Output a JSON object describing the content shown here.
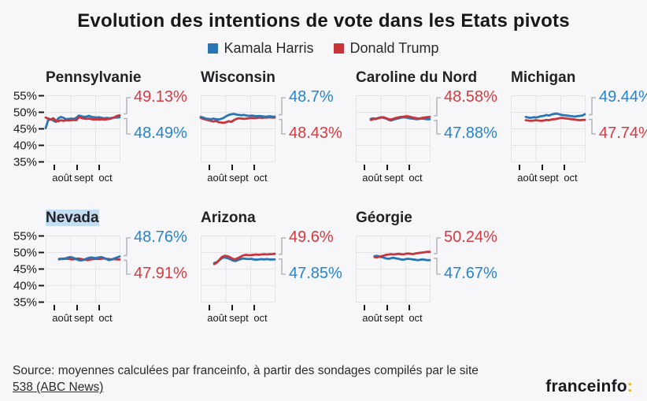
{
  "header": {
    "title": "Evolution des intentions de vote dans les Etats pivots"
  },
  "legend": [
    {
      "label": "Kamala Harris",
      "series": "harris"
    },
    {
      "label": "Donald Trump",
      "series": "trump"
    }
  ],
  "colors": {
    "harris_line": "#2a76b5",
    "trump_line": "#c9343a",
    "harris_label": "#2584cd",
    "trump_label": "#d8393e",
    "grid": "#e4e4e9",
    "axis": "#17181a",
    "bracket": "#b7b7bf",
    "highlight": "#c3ddf3",
    "logo_colon": "#f2b705"
  },
  "source": {
    "text": "Source: moyennes calculées par franceinfo, à partir des sondages compilés par le site",
    "link": "538 (ABC News)"
  },
  "logo": {
    "text": "franceinfo",
    "colon": ":"
  },
  "chart_data": [
    {
      "id": "pennsylvanie",
      "title": "Pennsylvanie",
      "type": "line",
      "row": 1,
      "show_y_axis": true,
      "highlighted": false,
      "y_ticks": [
        "55%",
        "50%",
        "45%",
        "40%",
        "35%"
      ],
      "y_range": [
        35,
        55
      ],
      "x_ticks": [
        "août",
        "sept",
        "oct"
      ],
      "start_frac": 0.0,
      "label_top": {
        "text": "49.13%",
        "series": "trump"
      },
      "label_bottom": {
        "text": "48.49%",
        "series": "harris"
      },
      "series": [
        {
          "name": "harris",
          "final": 48.49,
          "values": [
            45.2,
            47.6,
            47.9,
            47.5,
            47.1,
            48.2,
            48.6,
            48.3,
            47.9,
            48.0,
            48.1,
            48.0,
            48.3,
            49.0,
            48.8,
            48.6,
            48.7,
            48.9,
            48.6,
            48.5,
            48.4,
            48.5,
            48.3,
            48.2,
            48.3,
            48.2,
            48.3,
            48.4,
            48.4,
            48.5
          ]
        },
        {
          "name": "trump",
          "final": 49.13,
          "values": [
            48.4,
            48.1,
            47.8,
            48.2,
            47.4,
            47.3,
            47.6,
            47.4,
            47.6,
            47.5,
            47.6,
            47.7,
            47.6,
            48.5,
            48.3,
            48.1,
            48.0,
            48.1,
            47.9,
            47.8,
            47.9,
            47.8,
            47.9,
            47.8,
            47.9,
            48.0,
            48.2,
            48.5,
            48.9,
            49.1
          ]
        }
      ]
    },
    {
      "id": "wisconsin",
      "title": "Wisconsin",
      "type": "line",
      "row": 1,
      "show_y_axis": false,
      "highlighted": false,
      "y_ticks": [
        "55%",
        "50%",
        "45%",
        "40%",
        "35%"
      ],
      "y_range": [
        35,
        55
      ],
      "x_ticks": [
        "août",
        "sept",
        "oct"
      ],
      "start_frac": 0.0,
      "label_top": {
        "text": "48.7%",
        "series": "harris"
      },
      "label_bottom": {
        "text": "48.43%",
        "series": "trump"
      },
      "series": [
        {
          "name": "trump",
          "final": 48.43,
          "values": [
            48.3,
            48.0,
            47.8,
            47.6,
            47.4,
            47.2,
            47.4,
            47.0,
            46.9,
            46.8,
            47.0,
            47.3,
            47.1,
            47.6,
            48.0,
            48.2,
            48.1,
            48.0,
            48.1,
            48.2,
            48.3,
            48.2,
            48.3,
            48.4,
            48.3,
            48.4,
            48.4,
            48.5,
            48.4,
            48.4
          ]
        },
        {
          "name": "harris",
          "final": 48.7,
          "values": [
            48.6,
            48.4,
            48.1,
            48.0,
            47.9,
            48.1,
            47.9,
            47.8,
            48.0,
            48.3,
            48.8,
            49.2,
            49.4,
            49.5,
            49.3,
            49.2,
            49.1,
            49.2,
            49.0,
            48.9,
            49.0,
            48.9,
            48.8,
            48.9,
            48.8,
            48.7,
            48.7,
            48.8,
            48.7,
            48.7
          ]
        }
      ]
    },
    {
      "id": "caroline-du-nord",
      "title": "Caroline du Nord",
      "type": "line",
      "row": 1,
      "show_y_axis": false,
      "highlighted": false,
      "y_ticks": [
        "55%",
        "50%",
        "45%",
        "40%",
        "35%"
      ],
      "y_range": [
        35,
        55
      ],
      "x_ticks": [
        "août",
        "sept",
        "oct"
      ],
      "start_frac": 0.2,
      "label_top": {
        "text": "48.58%",
        "series": "trump"
      },
      "label_bottom": {
        "text": "47.88%",
        "series": "harris"
      },
      "series": [
        {
          "name": "harris",
          "final": 47.88,
          "values": [
            48.0,
            48.2,
            47.9,
            48.3,
            48.5,
            48.3,
            48.1,
            47.7,
            47.5,
            47.8,
            48.0,
            48.2,
            48.4,
            48.5,
            48.4,
            48.2,
            48.1,
            48.0,
            47.9,
            48.0,
            48.1,
            48.0,
            47.9,
            47.9
          ]
        },
        {
          "name": "trump",
          "final": 48.58,
          "values": [
            47.7,
            47.9,
            48.1,
            48.2,
            48.4,
            48.5,
            48.2,
            47.9,
            47.8,
            48.1,
            48.3,
            48.5,
            48.6,
            48.7,
            48.8,
            48.7,
            48.5,
            48.3,
            48.2,
            48.1,
            48.3,
            48.4,
            48.5,
            48.6
          ]
        }
      ]
    },
    {
      "id": "michigan",
      "title": "Michigan",
      "type": "line",
      "row": 1,
      "show_y_axis": false,
      "highlighted": false,
      "y_ticks": [
        "55%",
        "50%",
        "45%",
        "40%",
        "35%"
      ],
      "y_range": [
        35,
        55
      ],
      "x_ticks": [
        "août",
        "sept",
        "oct"
      ],
      "start_frac": 0.2,
      "label_top": {
        "text": "49.44%",
        "series": "harris"
      },
      "label_bottom": {
        "text": "47.74%",
        "series": "trump"
      },
      "series": [
        {
          "name": "trump",
          "final": 47.74,
          "values": [
            47.6,
            47.5,
            47.4,
            47.5,
            47.6,
            47.5,
            47.4,
            47.5,
            47.7,
            47.6,
            47.8,
            47.9,
            48.0,
            48.2,
            48.3,
            48.2,
            48.1,
            48.0,
            47.9,
            47.8,
            47.7,
            47.6,
            47.7,
            47.7
          ]
        },
        {
          "name": "harris",
          "final": 49.44,
          "values": [
            48.6,
            48.4,
            48.3,
            48.5,
            48.4,
            48.6,
            48.8,
            48.9,
            49.2,
            49.0,
            49.3,
            49.5,
            49.6,
            49.4,
            49.2,
            49.1,
            49.0,
            48.9,
            48.8,
            48.7,
            48.8,
            48.9,
            49.0,
            49.4
          ]
        }
      ]
    },
    {
      "id": "nevada",
      "title": "Nevada",
      "type": "line",
      "row": 2,
      "show_y_axis": true,
      "highlighted": true,
      "y_ticks": [
        "55%",
        "50%",
        "45%",
        "40%",
        "35%"
      ],
      "y_range": [
        35,
        55
      ],
      "x_ticks": [
        "août",
        "sept",
        "oct"
      ],
      "start_frac": 0.18,
      "label_top": {
        "text": "48.76%",
        "series": "harris"
      },
      "label_bottom": {
        "text": "47.91%",
        "series": "trump"
      },
      "series": [
        {
          "name": "trump",
          "final": 47.91,
          "values": [
            48.1,
            48.0,
            48.2,
            48.1,
            48.0,
            47.9,
            48.0,
            48.2,
            48.1,
            47.9,
            47.8,
            47.7,
            47.9,
            48.0,
            48.1,
            48.0,
            48.1,
            48.2,
            48.1,
            48.0,
            47.9,
            48.0,
            47.9,
            47.9
          ]
        },
        {
          "name": "harris",
          "final": 48.76,
          "values": [
            47.9,
            48.2,
            48.0,
            48.4,
            48.6,
            48.5,
            48.2,
            47.8,
            47.6,
            47.7,
            48.0,
            48.3,
            48.5,
            48.4,
            48.3,
            48.5,
            48.6,
            48.4,
            48.0,
            47.7,
            47.9,
            48.2,
            48.5,
            48.8
          ]
        }
      ]
    },
    {
      "id": "arizona",
      "title": "Arizona",
      "type": "line",
      "row": 2,
      "show_y_axis": false,
      "highlighted": false,
      "y_ticks": [
        "55%",
        "50%",
        "45%",
        "40%",
        "35%"
      ],
      "y_range": [
        35,
        55
      ],
      "x_ticks": [
        "août",
        "sept",
        "oct"
      ],
      "start_frac": 0.18,
      "label_top": {
        "text": "49.6%",
        "series": "trump"
      },
      "label_bottom": {
        "text": "47.85%",
        "series": "harris"
      },
      "series": [
        {
          "name": "harris",
          "final": 47.85,
          "values": [
            46.8,
            47.1,
            47.7,
            48.3,
            48.5,
            48.3,
            48.0,
            47.6,
            47.4,
            47.7,
            48.0,
            48.2,
            48.1,
            48.0,
            48.1,
            47.9,
            47.8,
            47.9,
            48.0,
            47.9,
            48.0,
            47.9,
            47.9,
            47.9
          ]
        },
        {
          "name": "trump",
          "final": 49.6,
          "values": [
            46.5,
            46.9,
            47.8,
            48.7,
            49.0,
            48.9,
            48.6,
            48.1,
            47.9,
            48.3,
            48.7,
            49.1,
            49.3,
            49.2,
            49.2,
            49.3,
            49.4,
            49.3,
            49.4,
            49.5,
            49.4,
            49.5,
            49.5,
            49.6
          ]
        }
      ]
    },
    {
      "id": "georgie",
      "title": "Géorgie",
      "type": "line",
      "row": 2,
      "show_y_axis": false,
      "highlighted": false,
      "y_ticks": [
        "55%",
        "50%",
        "45%",
        "40%",
        "35%"
      ],
      "y_range": [
        35,
        55
      ],
      "x_ticks": [
        "août",
        "sept",
        "oct"
      ],
      "start_frac": 0.25,
      "label_top": {
        "text": "50.24%",
        "series": "trump"
      },
      "label_bottom": {
        "text": "47.67%",
        "series": "harris"
      },
      "series": [
        {
          "name": "harris",
          "final": 47.67,
          "values": [
            48.9,
            49.0,
            48.8,
            48.6,
            48.4,
            48.2,
            48.1,
            48.3,
            48.4,
            48.2,
            48.1,
            47.9,
            47.8,
            48.0,
            48.1,
            48.0,
            47.9,
            47.8,
            47.7,
            47.8,
            47.9,
            47.8,
            47.7,
            47.7
          ]
        },
        {
          "name": "trump",
          "final": 50.24,
          "values": [
            48.6,
            48.5,
            48.7,
            48.9,
            49.1,
            49.3,
            49.4,
            49.5,
            49.4,
            49.5,
            49.6,
            49.5,
            49.4,
            49.6,
            49.7,
            49.6,
            49.5,
            49.7,
            49.8,
            49.9,
            50.0,
            50.1,
            50.2,
            50.2
          ]
        }
      ]
    }
  ]
}
